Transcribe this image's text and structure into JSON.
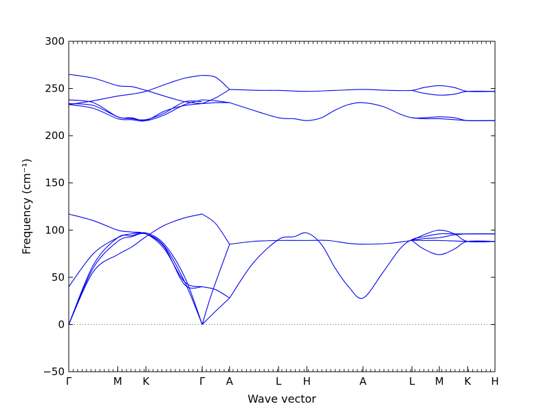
{
  "chart_data": {
    "type": "line",
    "xlabel": "Wave vector",
    "ylabel": "Frequency (cm⁻¹)",
    "ylim": [
      -50,
      300
    ],
    "yticks": [
      -50,
      0,
      50,
      100,
      150,
      200,
      250,
      300
    ],
    "yticklabels": [
      "−50",
      "0",
      "50",
      "100",
      "150",
      "200",
      "250",
      "300"
    ],
    "k_points": [
      {
        "label": "Γ",
        "x": 0.0
      },
      {
        "label": "M",
        "x": 0.717
      },
      {
        "label": "K",
        "x": 1.131
      },
      {
        "label": "Γ",
        "x": 1.955
      },
      {
        "label": "A",
        "x": 2.356
      },
      {
        "label": "L",
        "x": 3.073
      },
      {
        "label": "H",
        "x": 3.487
      },
      {
        "label": "A",
        "x": 4.311
      },
      {
        "label": "L",
        "x": 5.028
      },
      {
        "label": "M",
        "x": 5.429
      },
      {
        "label": "K",
        "x": 5.843
      },
      {
        "label": "H",
        "x": 6.244
      }
    ],
    "zero_line": true,
    "line_color": "#0000ee",
    "zero_line_color": "#555555",
    "series": [
      {
        "values": [
          [
            0,
            0
          ],
          [
            0.36,
            60
          ],
          [
            0.717,
            88
          ],
          [
            0.92,
            93
          ],
          [
            1.131,
            96
          ],
          [
            1.4,
            83
          ],
          [
            1.7,
            45
          ],
          [
            1.955,
            0
          ]
        ]
      },
      {
        "values": [
          [
            0,
            0
          ],
          [
            0.36,
            56
          ],
          [
            0.717,
            74
          ],
          [
            0.92,
            82
          ],
          [
            1.131,
            93
          ],
          [
            1.4,
            105
          ],
          [
            1.7,
            113
          ],
          [
            1.955,
            117
          ]
        ]
      },
      {
        "values": [
          [
            0,
            0
          ],
          [
            0.36,
            63
          ],
          [
            0.717,
            92
          ],
          [
            0.92,
            94
          ],
          [
            1.131,
            97
          ],
          [
            1.4,
            85
          ],
          [
            1.7,
            50
          ],
          [
            1.955,
            0
          ]
        ]
      },
      {
        "values": [
          [
            0,
            40
          ],
          [
            0.36,
            75
          ],
          [
            0.717,
            92
          ],
          [
            0.92,
            96
          ],
          [
            1.131,
            96
          ],
          [
            1.4,
            80
          ],
          [
            1.7,
            45
          ],
          [
            1.955,
            40
          ]
        ]
      },
      {
        "values": [
          [
            0,
            117
          ],
          [
            0.36,
            110
          ],
          [
            0.717,
            100
          ],
          [
            0.92,
            98
          ],
          [
            1.131,
            96
          ],
          [
            1.4,
            82
          ],
          [
            1.7,
            42
          ],
          [
            1.955,
            40
          ]
        ]
      },
      {
        "values": [
          [
            1.955,
            0
          ],
          [
            2.1,
            34
          ],
          [
            2.356,
            85
          ]
        ]
      },
      {
        "values": [
          [
            1.955,
            0
          ],
          [
            2.15,
            14
          ],
          [
            2.356,
            28
          ]
        ]
      },
      {
        "values": [
          [
            1.955,
            40
          ],
          [
            2.15,
            37
          ],
          [
            2.356,
            28
          ]
        ]
      },
      {
        "values": [
          [
            1.955,
            117
          ],
          [
            2.15,
            107
          ],
          [
            2.356,
            85
          ]
        ]
      },
      {
        "values": [
          [
            2.356,
            28
          ],
          [
            2.7,
            65
          ],
          [
            3.073,
            90
          ],
          [
            3.3,
            93
          ],
          [
            3.487,
            97
          ],
          [
            3.7,
            85
          ],
          [
            3.9,
            60
          ],
          [
            4.1,
            40
          ],
          [
            4.311,
            28
          ],
          [
            4.6,
            55
          ],
          [
            4.85,
            80
          ],
          [
            5.028,
            90
          ],
          [
            5.2,
            93
          ],
          [
            5.429,
            96
          ],
          [
            5.6,
            96
          ],
          [
            5.843,
            96
          ],
          [
            6.244,
            96
          ]
        ]
      },
      {
        "values": [
          [
            2.356,
            85
          ],
          [
            2.7,
            88
          ],
          [
            3.073,
            89
          ],
          [
            3.487,
            89
          ],
          [
            3.8,
            89
          ],
          [
            4.1,
            86
          ],
          [
            4.311,
            85
          ],
          [
            4.7,
            86
          ],
          [
            5.028,
            89
          ],
          [
            5.2,
            89
          ],
          [
            5.429,
            89
          ],
          [
            5.843,
            88
          ],
          [
            6.244,
            88
          ]
        ]
      },
      {
        "values": [
          [
            5.028,
            89
          ],
          [
            5.2,
            95
          ],
          [
            5.429,
            100
          ],
          [
            5.65,
            96
          ],
          [
            5.843,
            88
          ],
          [
            6.244,
            88
          ]
        ]
      },
      {
        "values": [
          [
            5.028,
            89
          ],
          [
            5.2,
            80
          ],
          [
            5.429,
            74
          ],
          [
            5.65,
            80
          ],
          [
            5.843,
            88
          ],
          [
            6.244,
            88
          ]
        ]
      },
      {
        "values": [
          [
            5.028,
            89
          ],
          [
            5.2,
            91
          ],
          [
            5.429,
            92
          ],
          [
            5.65,
            95
          ],
          [
            5.843,
            96
          ],
          [
            6.244,
            96
          ]
        ]
      },
      {
        "values": [
          [
            0,
            265
          ],
          [
            0.36,
            261
          ],
          [
            0.717,
            253
          ],
          [
            0.92,
            252
          ],
          [
            1.131,
            248
          ],
          [
            1.4,
            242
          ],
          [
            1.7,
            236
          ],
          [
            1.955,
            234
          ]
        ]
      },
      {
        "values": [
          [
            0,
            233
          ],
          [
            0.36,
            237
          ],
          [
            0.717,
            242
          ],
          [
            0.92,
            244
          ],
          [
            1.131,
            247
          ],
          [
            1.4,
            254
          ],
          [
            1.7,
            261
          ],
          [
            1.955,
            264
          ]
        ]
      },
      {
        "values": [
          [
            0,
            238
          ],
          [
            0.36,
            235
          ],
          [
            0.717,
            220
          ],
          [
            0.92,
            219
          ],
          [
            1.131,
            216
          ],
          [
            1.4,
            222
          ],
          [
            1.7,
            233
          ],
          [
            1.955,
            238
          ]
        ]
      },
      {
        "values": [
          [
            0,
            233
          ],
          [
            0.36,
            229
          ],
          [
            0.717,
            218
          ],
          [
            0.92,
            217
          ],
          [
            1.131,
            216
          ],
          [
            1.4,
            226
          ],
          [
            1.7,
            232
          ],
          [
            1.955,
            234
          ]
        ]
      },
      {
        "values": [
          [
            0,
            234
          ],
          [
            0.36,
            232
          ],
          [
            0.717,
            220
          ],
          [
            0.92,
            218
          ],
          [
            1.131,
            217
          ],
          [
            1.4,
            224
          ],
          [
            1.7,
            236
          ],
          [
            1.955,
            236
          ]
        ]
      },
      {
        "values": [
          [
            1.955,
            264
          ],
          [
            2.15,
            262
          ],
          [
            2.356,
            249
          ]
        ]
      },
      {
        "values": [
          [
            1.955,
            234
          ],
          [
            2.15,
            240
          ],
          [
            2.356,
            249
          ]
        ]
      },
      {
        "values": [
          [
            1.955,
            238
          ],
          [
            2.15,
            237
          ],
          [
            2.356,
            235
          ]
        ]
      },
      {
        "values": [
          [
            1.955,
            234
          ],
          [
            2.15,
            235
          ],
          [
            2.356,
            235
          ]
        ]
      },
      {
        "values": [
          [
            2.356,
            249
          ],
          [
            2.8,
            248
          ],
          [
            3.073,
            248
          ],
          [
            3.487,
            247
          ],
          [
            3.9,
            248
          ],
          [
            4.311,
            249
          ],
          [
            4.7,
            248
          ],
          [
            5.028,
            248
          ],
          [
            5.2,
            251
          ],
          [
            5.429,
            253
          ],
          [
            5.65,
            251
          ],
          [
            5.843,
            247
          ],
          [
            6.244,
            247
          ]
        ]
      },
      {
        "values": [
          [
            5.028,
            248
          ],
          [
            5.2,
            245
          ],
          [
            5.429,
            243
          ],
          [
            5.65,
            244
          ],
          [
            5.843,
            247
          ],
          [
            6.244,
            247
          ]
        ]
      },
      {
        "values": [
          [
            2.356,
            235
          ],
          [
            2.7,
            227
          ],
          [
            3.073,
            219
          ],
          [
            3.3,
            218
          ],
          [
            3.487,
            216
          ],
          [
            3.7,
            219
          ],
          [
            3.9,
            227
          ],
          [
            4.1,
            233
          ],
          [
            4.311,
            235
          ],
          [
            4.6,
            231
          ],
          [
            4.85,
            223
          ],
          [
            5.028,
            219
          ],
          [
            5.2,
            219
          ],
          [
            5.429,
            220
          ],
          [
            5.65,
            219
          ],
          [
            5.843,
            216
          ],
          [
            6.244,
            216
          ]
        ]
      },
      {
        "values": [
          [
            5.028,
            219
          ],
          [
            5.2,
            218
          ],
          [
            5.429,
            218
          ],
          [
            5.65,
            217
          ],
          [
            5.843,
            216
          ],
          [
            6.244,
            216
          ]
        ]
      }
    ]
  }
}
